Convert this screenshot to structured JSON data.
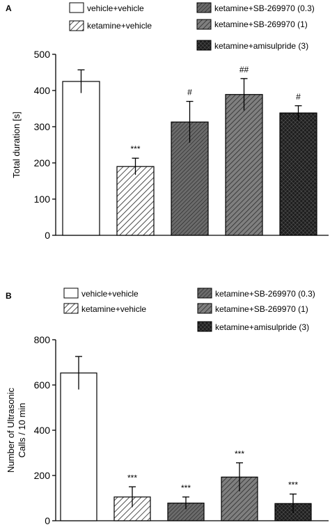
{
  "chart_data": [
    {
      "type": "bar",
      "panel": "A",
      "ylabel": "Total duration [s]",
      "ylabel_lines": [
        "Total duration [s]"
      ],
      "ylim": [
        0,
        500
      ],
      "yticks": [
        0,
        100,
        200,
        300,
        400,
        500
      ],
      "categories": [
        "vehicle+vehicle",
        "ketamine+vehicle",
        "ketamine+SB-269970 (0.3)",
        "ketamine+SB-269970 (1)",
        "ketamine+amisulpride (3)"
      ],
      "values": [
        425,
        190,
        313,
        389,
        338
      ],
      "errors": [
        32,
        23,
        57,
        44,
        20
      ],
      "significance": [
        "",
        "***",
        "#",
        "##",
        "#"
      ],
      "grid": false
    },
    {
      "type": "bar",
      "panel": "B",
      "ylabel": "Number of Ultrasonic Calls / 10 min",
      "ylabel_lines": [
        "Number of Ultrasonic",
        "Calls / 10 min"
      ],
      "ylim": [
        0,
        800
      ],
      "yticks": [
        0,
        200,
        400,
        600,
        800
      ],
      "categories": [
        "vehicle+vehicle",
        "ketamine+vehicle",
        "ketamine+SB-269970 (0.3)",
        "ketamine+SB-269970 (1)",
        "ketamine+amisulpride (3)"
      ],
      "values": [
        653,
        105,
        78,
        193,
        76
      ],
      "errors": [
        73,
        45,
        27,
        63,
        42
      ],
      "significance": [
        "",
        "***",
        "***",
        "***",
        "***"
      ],
      "grid": false
    }
  ],
  "legend": [
    {
      "label": "vehicle+vehicle",
      "pattern": "white"
    },
    {
      "label": "ketamine+vehicle",
      "pattern": "light-hatch"
    },
    {
      "label": "ketamine+SB-269970 (0.3)",
      "pattern": "dark-hatch"
    },
    {
      "label": "ketamine+SB-269970 (1)",
      "pattern": "gray-hatch"
    },
    {
      "label": "ketamine+amisulpride (3)",
      "pattern": "crosshatch"
    }
  ],
  "colors": {
    "dark_hatch_fill": "#6b6b6b",
    "gray_hatch_fill": "#7f7f7f",
    "crosshatch_fill": "#1e1e1e"
  }
}
